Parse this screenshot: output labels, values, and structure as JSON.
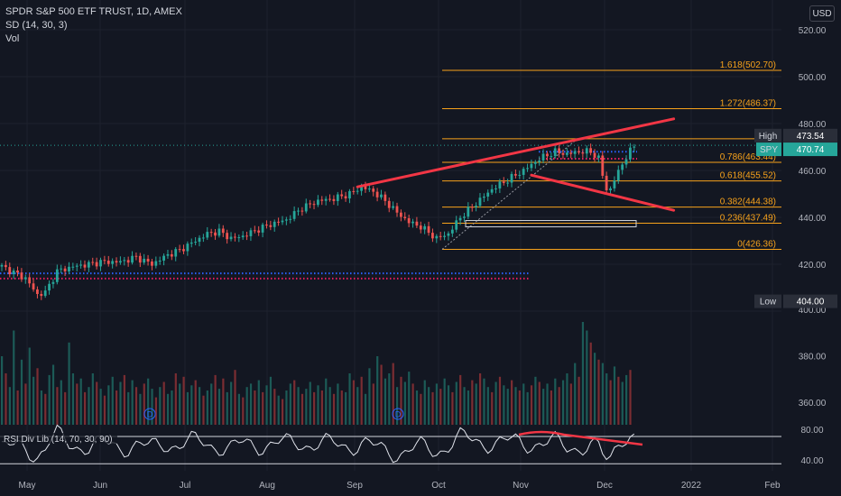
{
  "header": {
    "title": "SPDR S&P 500 ETF TRUST, 1D, AMEX",
    "indicator": "SD (14, 30, 3)",
    "volume": "Vol",
    "currency": "USD"
  },
  "colors": {
    "background": "#131722",
    "up": "#26a69a",
    "down": "#ef5350",
    "fib": "#f7a21b",
    "trendline": "#f23645",
    "grid": "#1e222d",
    "axis_text": "#b2b5be",
    "blue_dots": "#2962ff",
    "pink_dots": "#e91e63"
  },
  "chart_data": [
    {
      "type": "candlestick",
      "title": "SPDR S&P 500 ETF TRUST, 1D, AMEX",
      "x_ticks": [
        "May",
        "Jun",
        "Jul",
        "Aug",
        "Sep",
        "Oct",
        "Nov",
        "Dec",
        "2022",
        "Feb"
      ],
      "y_ticks": [
        400,
        420,
        440,
        460,
        480,
        500,
        520
      ],
      "ylim": [
        398,
        527
      ],
      "price_tags": [
        {
          "label": "High",
          "value": 473.54
        },
        {
          "label": "SPY",
          "value": 470.74
        },
        {
          "label": "Low",
          "value": 404.0
        }
      ],
      "fib_retracement": [
        {
          "label": "1.618(502.70)",
          "level": 1.618,
          "value": 502.7
        },
        {
          "label": "1.272(486.37)",
          "level": 1.272,
          "value": 486.37
        },
        {
          "label": "1(47",
          "level": 1,
          "value": 473.5
        },
        {
          "label": "0.786(463.44)",
          "level": 0.786,
          "value": 463.44
        },
        {
          "label": "0.618(455.52)",
          "level": 0.618,
          "value": 455.52
        },
        {
          "label": "0.382(444.38)",
          "level": 0.382,
          "value": 444.38
        },
        {
          "label": "0.236(437.49)",
          "level": 0.236,
          "value": 437.49
        },
        {
          "label": "0(426.36)",
          "level": 0,
          "value": 426.36
        }
      ],
      "trendlines": [
        {
          "name": "upper",
          "from": [
            90,
            453
          ],
          "to": [
            170,
            482
          ]
        },
        {
          "name": "lower",
          "from": [
            134,
            458
          ],
          "to": [
            170,
            443
          ]
        }
      ],
      "reference_lines": [
        {
          "name": "blue-dotted",
          "value": 416.1
        },
        {
          "name": "pink-dotted",
          "value": 413.9
        }
      ],
      "candle_keyframes": [
        [
          0,
          419
        ],
        [
          6,
          414
        ],
        [
          9,
          407
        ],
        [
          11,
          408
        ],
        [
          14,
          417
        ],
        [
          18,
          419
        ],
        [
          22,
          420
        ],
        [
          25,
          421
        ],
        [
          30,
          421
        ],
        [
          34,
          423
        ],
        [
          38,
          420
        ],
        [
          42,
          424
        ],
        [
          45,
          426
        ],
        [
          48,
          429
        ],
        [
          52,
          433
        ],
        [
          55,
          434
        ],
        [
          58,
          431
        ],
        [
          61,
          432
        ],
        [
          65,
          435
        ],
        [
          68,
          437
        ],
        [
          72,
          439
        ],
        [
          76,
          444
        ],
        [
          80,
          447
        ],
        [
          84,
          448
        ],
        [
          88,
          450
        ],
        [
          91,
          453
        ],
        [
          94,
          451
        ],
        [
          97,
          447
        ],
        [
          100,
          442
        ],
        [
          103,
          438
        ],
        [
          106,
          436
        ],
        [
          110,
          431
        ],
        [
          113,
          433
        ],
        [
          116,
          440
        ],
        [
          120,
          446
        ],
        [
          124,
          452
        ],
        [
          128,
          456
        ],
        [
          132,
          460
        ],
        [
          136,
          465
        ],
        [
          140,
          468
        ],
        [
          143,
          467
        ],
        [
          146,
          468
        ],
        [
          149,
          468
        ],
        [
          151,
          465
        ],
        [
          152,
          458
        ],
        [
          153,
          452
        ],
        [
          154,
          452
        ],
        [
          155,
          456
        ],
        [
          157,
          463
        ],
        [
          160,
          470.74
        ]
      ]
    },
    {
      "type": "bar",
      "title": "Vol",
      "y_ticks": [
        360,
        380,
        400
      ],
      "ylim": [
        352,
        408
      ],
      "values": [
        40,
        30,
        22,
        55,
        20,
        38,
        24,
        45,
        28,
        33,
        20,
        18,
        29,
        35,
        22,
        26,
        19,
        48,
        30,
        24,
        27,
        19,
        22,
        30,
        25,
        21,
        17,
        23,
        28,
        20,
        25,
        29,
        19,
        26,
        22,
        18,
        24,
        27,
        21,
        16,
        22,
        25,
        18,
        20,
        30,
        24,
        28,
        19,
        23,
        26,
        22,
        17,
        20,
        24,
        29,
        21,
        27,
        19,
        25,
        32,
        18,
        16,
        22,
        24,
        20,
        26,
        19,
        23,
        28,
        21,
        17,
        15,
        20,
        24,
        26,
        22,
        18,
        21,
        25,
        19,
        23,
        20,
        27,
        22,
        18,
        24,
        20,
        19,
        30,
        26,
        22,
        28,
        18,
        33,
        24,
        40,
        35,
        27,
        30,
        36,
        22,
        28,
        25,
        31,
        24,
        20,
        18,
        26,
        22,
        19,
        24,
        21,
        27,
        23,
        19,
        25,
        29,
        22,
        20,
        26,
        24,
        30,
        27,
        22,
        19,
        25,
        28,
        23,
        21,
        26,
        22,
        20,
        24,
        19,
        23,
        28,
        25,
        21,
        24,
        20,
        27,
        22,
        26,
        30,
        24,
        36,
        28,
        60,
        55,
        48,
        42,
        38,
        36,
        30,
        26,
        34,
        28,
        25,
        29,
        32
      ],
      "up_pattern": "alternating"
    },
    {
      "type": "line",
      "title": "RSI Div Lib (14, 70, 30, 90)",
      "y_ticks": [
        40,
        80
      ],
      "ylim": [
        30,
        90
      ],
      "bands": [
        80,
        35
      ]
    }
  ]
}
